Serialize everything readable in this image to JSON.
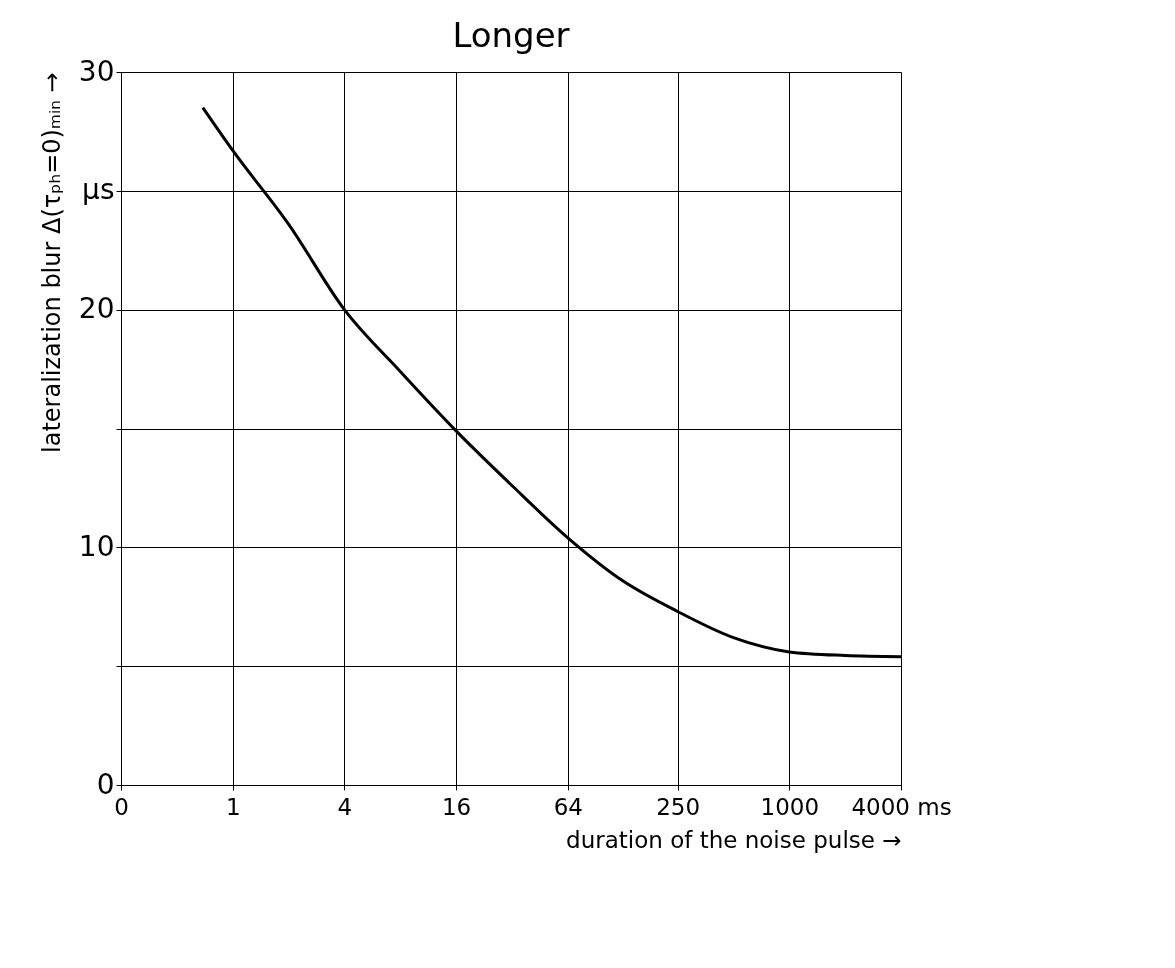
{
  "chart_data": {
    "type": "line",
    "title": "Longer",
    "xlabel": "duration of the noise pulse →",
    "ylabel": "lateralization blur  Δ(τₚₕ=0)ₘᵢₙ →",
    "x": [
      0.69,
      1,
      2,
      4,
      8,
      16,
      32,
      64,
      126,
      250,
      500,
      1000,
      2000,
      4000
    ],
    "series": [
      {
        "color": "#000000",
        "values": [
          28.5,
          26.7,
          23.6,
          20.0,
          17.4,
          14.9,
          12.6,
          10.4,
          8.6,
          7.3,
          6.2,
          5.6,
          5.45,
          5.4
        ]
      }
    ],
    "log": "x",
    "xlim": [
      0.25,
      4000
    ],
    "xticks": [
      {
        "value": 0.25,
        "label": "0"
      },
      1,
      4,
      16,
      64,
      250,
      1000,
      {
        "value": 4000,
        "label": "4000 ms"
      }
    ],
    "ylim": [
      0,
      30
    ],
    "yticks": [
      0,
      {
        "value": 5,
        "label": null
      },
      10,
      {
        "value": 15,
        "label": null
      },
      20,
      {
        "value": 25,
        "label": "µs"
      },
      30
    ],
    "grid": true,
    "legend": false,
    "marker": "none",
    "line_style": "solid"
  }
}
